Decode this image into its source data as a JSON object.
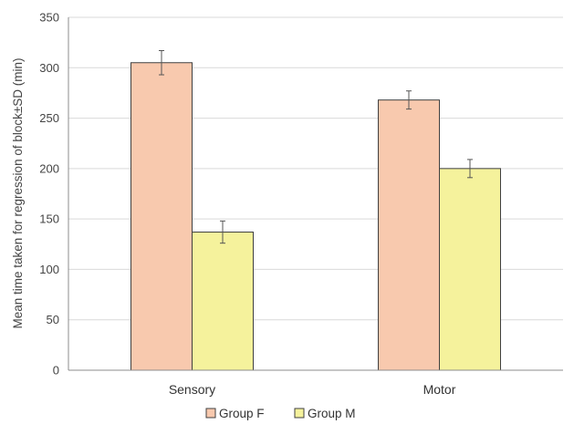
{
  "chart_data": {
    "type": "bar",
    "ylabel": "Mean time taken for regression of block±SD (min)",
    "xlabel": "",
    "ylim": [
      0,
      350
    ],
    "y_ticks": [
      0,
      50,
      100,
      150,
      200,
      250,
      300,
      350
    ],
    "grid": true,
    "legend_position": "bottom",
    "categories": [
      "Sensory",
      "Motor"
    ],
    "series": [
      {
        "name": "Group F",
        "color": "#f8c9ae",
        "values": [
          305,
          268
        ],
        "errors": [
          12,
          9
        ]
      },
      {
        "name": "Group M",
        "color": "#f5f29c",
        "values": [
          137,
          200
        ],
        "errors": [
          11,
          9
        ]
      }
    ]
  }
}
